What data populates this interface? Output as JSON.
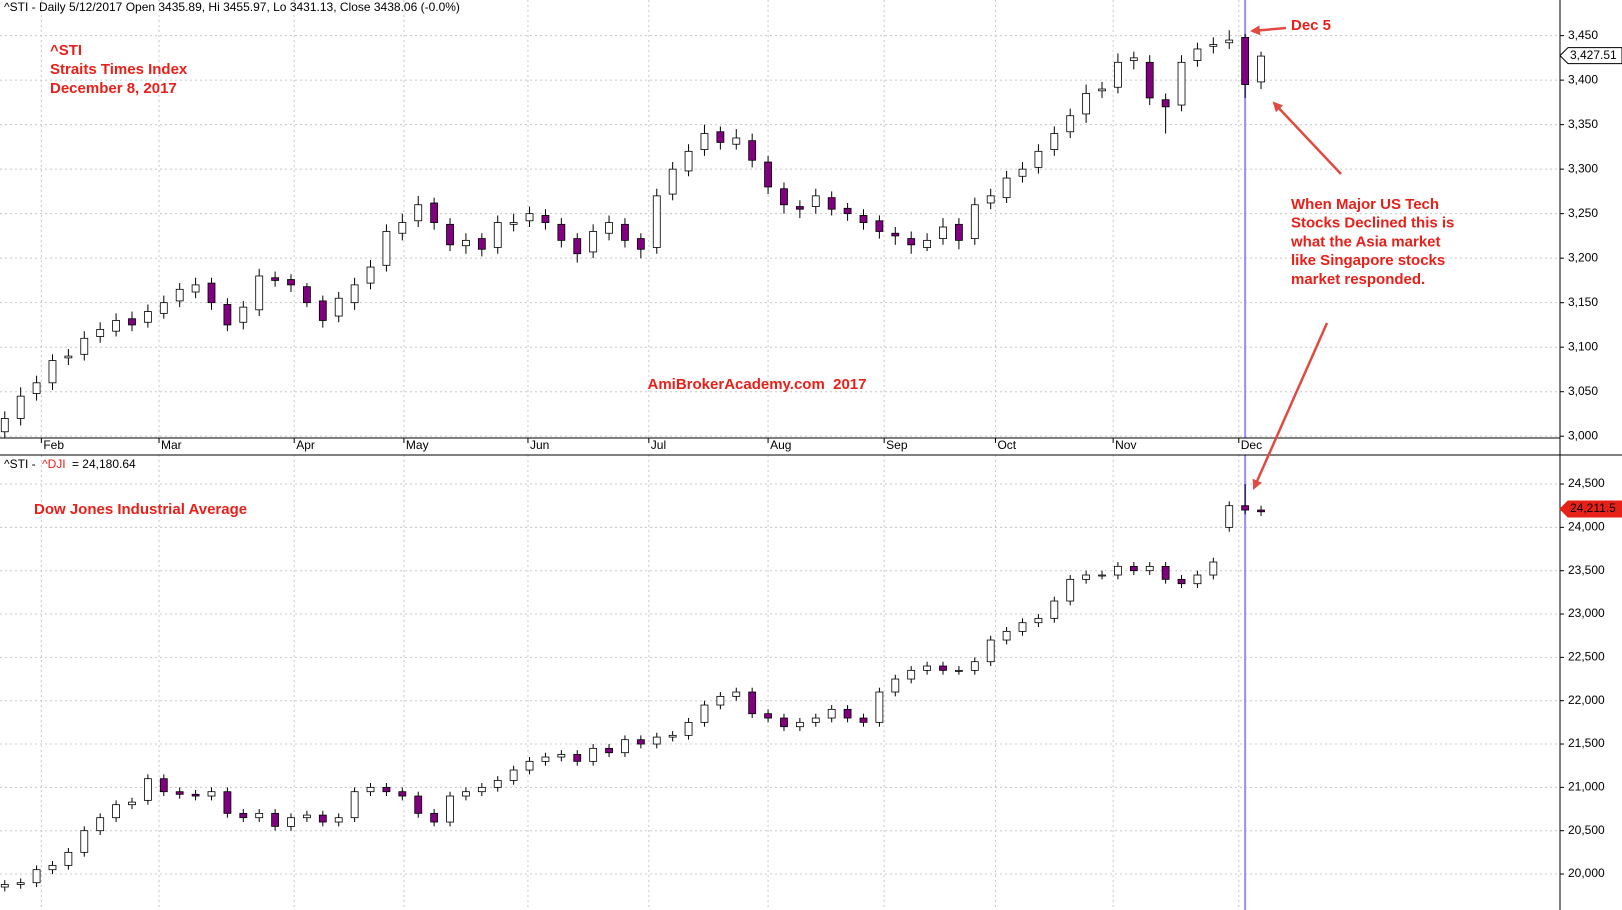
{
  "chart_data": [
    {
      "type": "candlestick",
      "header": "^STI - Daily 5/12/2017 Open 3435.89, Hi 3455.97, Lo 3431.13, Close 3438.06 (-0.0%)",
      "annotations": {
        "symbol": "^STI",
        "name": "Straits Times Index",
        "date": "December 8, 2017",
        "watermark": "AmiBrokerAcademy.com  2017",
        "event": "Dec 5",
        "note": [
          "When Major US Tech",
          "Stocks Declined this is",
          "what the Asia market",
          "like Singapore stocks",
          "market responded."
        ]
      },
      "xlim": [
        -0.3,
        97.8
      ],
      "xticks": [
        {
          "value": 2.3,
          "label": "Feb"
        },
        {
          "value": 9.7,
          "label": "Mar"
        },
        {
          "value": 18.2,
          "label": "Apr"
        },
        {
          "value": 25.1,
          "label": "May"
        },
        {
          "value": 32.9,
          "label": "Jun"
        },
        {
          "value": 40.5,
          "label": "Jul"
        },
        {
          "value": 48,
          "label": "Aug"
        },
        {
          "value": 55.3,
          "label": "Sep"
        },
        {
          "value": 62.3,
          "label": "Oct"
        },
        {
          "value": 69.7,
          "label": "Nov"
        },
        {
          "value": 77.6,
          "label": "Dec"
        }
      ],
      "highlight_x": 78,
      "ylim": [
        2998,
        3490
      ],
      "yticks": [
        {
          "value": 3000,
          "label": "3,000"
        },
        {
          "value": 3050,
          "label": "3,050"
        },
        {
          "value": 3100,
          "label": "3,100"
        },
        {
          "value": 3150,
          "label": "3,150"
        },
        {
          "value": 3200,
          "label": "3,200"
        },
        {
          "value": 3250,
          "label": "3,250"
        },
        {
          "value": 3300,
          "label": "3,300"
        },
        {
          "value": 3350,
          "label": "3,350"
        },
        {
          "value": 3400,
          "label": "3,400"
        },
        {
          "value": 3450,
          "label": "3,450"
        }
      ],
      "grid": true,
      "up_color": "#ffffff",
      "down_color": "#800080",
      "last": {
        "value": 3427.51,
        "label": "3,427.51"
      },
      "open": [
        3005,
        3020,
        3048,
        3060,
        3088,
        3092,
        3112,
        3118,
        3132,
        3128,
        3138,
        3152,
        3162,
        3172,
        3148,
        3128,
        3142,
        3178,
        3176,
        3168,
        3152,
        3135,
        3150,
        3172,
        3192,
        3228,
        3242,
        3262,
        3238,
        3214,
        3222,
        3212,
        3238,
        3242,
        3248,
        3238,
        3222,
        3207,
        3228,
        3238,
        3222,
        3212,
        3272,
        3298,
        3322,
        3342,
        3328,
        3332,
        3308,
        3278,
        3258,
        3258,
        3268,
        3256,
        3248,
        3242,
        3228,
        3222,
        3212,
        3222,
        3238,
        3222,
        3262,
        3268,
        3292,
        3302,
        3322,
        3342,
        3362,
        3388,
        3392,
        3422,
        3420,
        3378,
        3372,
        3422,
        3438,
        3442,
        3448,
        3398
      ],
      "high": [
        3028,
        3055,
        3068,
        3092,
        3098,
        3118,
        3128,
        3138,
        3140,
        3148,
        3158,
        3172,
        3178,
        3178,
        3155,
        3152,
        3188,
        3185,
        3182,
        3172,
        3158,
        3162,
        3178,
        3198,
        3238,
        3250,
        3270,
        3268,
        3245,
        3228,
        3228,
        3248,
        3250,
        3258,
        3255,
        3245,
        3228,
        3238,
        3248,
        3245,
        3228,
        3278,
        3308,
        3328,
        3350,
        3348,
        3345,
        3340,
        3315,
        3285,
        3265,
        3278,
        3275,
        3262,
        3255,
        3248,
        3235,
        3230,
        3228,
        3245,
        3245,
        3268,
        3278,
        3298,
        3308,
        3328,
        3348,
        3368,
        3395,
        3398,
        3430,
        3432,
        3428,
        3385,
        3428,
        3442,
        3448,
        3456,
        3452,
        3432
      ],
      "low": [
        2998,
        3012,
        3040,
        3052,
        3080,
        3085,
        3105,
        3112,
        3118,
        3122,
        3132,
        3145,
        3155,
        3142,
        3118,
        3120,
        3135,
        3168,
        3162,
        3145,
        3122,
        3128,
        3142,
        3165,
        3185,
        3220,
        3235,
        3232,
        3208,
        3205,
        3202,
        3205,
        3230,
        3235,
        3232,
        3212,
        3195,
        3200,
        3220,
        3212,
        3200,
        3205,
        3265,
        3292,
        3315,
        3322,
        3322,
        3302,
        3272,
        3250,
        3245,
        3250,
        3248,
        3242,
        3232,
        3222,
        3215,
        3205,
        3208,
        3215,
        3210,
        3215,
        3255,
        3262,
        3285,
        3295,
        3315,
        3335,
        3352,
        3380,
        3385,
        3412,
        3372,
        3340,
        3365,
        3415,
        3430,
        3435,
        3380,
        3390
      ],
      "close": [
        3020,
        3045,
        3060,
        3085,
        3090,
        3110,
        3120,
        3130,
        3125,
        3140,
        3150,
        3165,
        3170,
        3150,
        3125,
        3145,
        3180,
        3175,
        3170,
        3150,
        3130,
        3155,
        3170,
        3190,
        3230,
        3240,
        3260,
        3240,
        3215,
        3220,
        3210,
        3240,
        3240,
        3250,
        3240,
        3220,
        3205,
        3230,
        3240,
        3220,
        3210,
        3270,
        3300,
        3320,
        3340,
        3330,
        3335,
        3310,
        3280,
        3260,
        3255,
        3270,
        3255,
        3250,
        3240,
        3230,
        3225,
        3215,
        3220,
        3235,
        3220,
        3260,
        3270,
        3290,
        3300,
        3320,
        3340,
        3360,
        3385,
        3390,
        3420,
        3425,
        3380,
        3370,
        3420,
        3435,
        3440,
        3445,
        3395,
        3427
      ]
    },
    {
      "type": "candlestick",
      "title": "Dow Jones Industrial Average",
      "legend_prefix": "^STI -",
      "legend_symbol": "^DJI",
      "legend_value": "= 24,180.64",
      "xlim": [
        -0.3,
        97.8
      ],
      "highlight_x": 78,
      "ylim": [
        19585,
        24835
      ],
      "yticks": [
        {
          "value": 20000,
          "label": "20,000"
        },
        {
          "value": 20500,
          "label": "20,500"
        },
        {
          "value": 21000,
          "label": "21,000"
        },
        {
          "value": 21500,
          "label": "21,500"
        },
        {
          "value": 22000,
          "label": "22,000"
        },
        {
          "value": 22500,
          "label": "22,500"
        },
        {
          "value": 23000,
          "label": "23,000"
        },
        {
          "value": 23500,
          "label": "23,500"
        },
        {
          "value": 24000,
          "label": "24,000"
        },
        {
          "value": 24500,
          "label": "24,500"
        }
      ],
      "grid": true,
      "up_color": "#ffffff",
      "down_color": "#800080",
      "last": {
        "value": 24211.5,
        "label": "24,211.5"
      },
      "open": [
        19850,
        19880,
        19900,
        20050,
        20100,
        20250,
        20500,
        20650,
        20800,
        20850,
        21100,
        20950,
        20920,
        20900,
        20950,
        20700,
        20650,
        20700,
        20550,
        20650,
        20680,
        20600,
        20650,
        20950,
        21000,
        20950,
        20900,
        20700,
        20600,
        20900,
        20950,
        21000,
        21080,
        21200,
        21300,
        21350,
        21380,
        21300,
        21450,
        21400,
        21550,
        21500,
        21580,
        21600,
        21750,
        21950,
        22050,
        22100,
        21850,
        21800,
        21700,
        21750,
        21800,
        21900,
        21800,
        21750,
        22100,
        22250,
        22350,
        22400,
        22350,
        22350,
        22450,
        22700,
        22800,
        22900,
        22950,
        23150,
        23400,
        23450,
        23450,
        23550,
        23500,
        23550,
        23400,
        23350,
        23450,
        24000,
        24250,
        24200
      ],
      "high": [
        19930,
        19950,
        20100,
        20150,
        20300,
        20550,
        20700,
        20850,
        20880,
        21150,
        21150,
        21000,
        20970,
        21000,
        21000,
        20750,
        20750,
        20750,
        20700,
        20730,
        20730,
        20700,
        21000,
        21050,
        21050,
        21000,
        20950,
        20750,
        20950,
        21000,
        21050,
        21130,
        21250,
        21350,
        21400,
        21430,
        21430,
        21500,
        21500,
        21600,
        21600,
        21630,
        21650,
        21800,
        22000,
        22100,
        22150,
        22150,
        21900,
        21850,
        21800,
        21850,
        21950,
        21950,
        21850,
        22150,
        22300,
        22400,
        22450,
        22450,
        22400,
        22500,
        22750,
        22850,
        22950,
        23000,
        23200,
        23450,
        23500,
        23500,
        23600,
        23600,
        23600,
        23600,
        23450,
        23500,
        23650,
        24300,
        24500,
        24250
      ],
      "low": [
        19800,
        19830,
        19850,
        20000,
        20050,
        20200,
        20450,
        20600,
        20750,
        20800,
        20900,
        20870,
        20850,
        20850,
        20650,
        20600,
        20600,
        20500,
        20500,
        20600,
        20550,
        20550,
        20600,
        20900,
        20900,
        20850,
        20650,
        20550,
        20550,
        20850,
        20900,
        20950,
        21030,
        21150,
        21250,
        21300,
        21250,
        21250,
        21350,
        21350,
        21450,
        21450,
        21530,
        21550,
        21700,
        21900,
        22000,
        21800,
        21750,
        21650,
        21650,
        21700,
        21750,
        21750,
        21700,
        21700,
        22050,
        22200,
        22300,
        22300,
        22300,
        22300,
        22400,
        22650,
        22750,
        22850,
        22900,
        23100,
        23350,
        23400,
        23400,
        23450,
        23450,
        23350,
        23300,
        23300,
        23400,
        23950,
        24150,
        24130
      ],
      "close": [
        19880,
        19900,
        20050,
        20100,
        20250,
        20500,
        20650,
        20800,
        20830,
        21100,
        20950,
        20920,
        20900,
        20950,
        20700,
        20650,
        20700,
        20550,
        20650,
        20680,
        20600,
        20650,
        20950,
        21000,
        20950,
        20900,
        20700,
        20600,
        20900,
        20950,
        21000,
        21080,
        21200,
        21300,
        21350,
        21380,
        21300,
        21450,
        21400,
        21550,
        21500,
        21580,
        21600,
        21750,
        21950,
        22050,
        22100,
        21850,
        21800,
        21700,
        21750,
        21800,
        21900,
        21800,
        21750,
        22100,
        22250,
        22350,
        22400,
        22350,
        22350,
        22450,
        22700,
        22800,
        22900,
        22950,
        23150,
        23400,
        23450,
        23450,
        23550,
        23500,
        23550,
        23400,
        23350,
        23450,
        23600,
        24250,
        24200,
        24180
      ]
    }
  ]
}
